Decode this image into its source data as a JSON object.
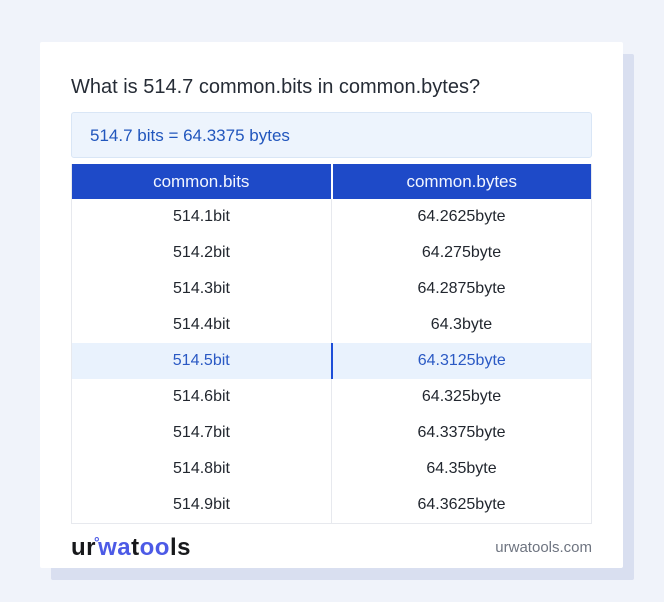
{
  "title": "What is 514.7 common.bits in common.bytes?",
  "result": {
    "text": "514.7 bits = 64.3375 bytes"
  },
  "table": {
    "headers": {
      "bits": "common.bits",
      "bytes": "common.bytes"
    },
    "rows": [
      {
        "bits": "514.1bit",
        "bytes": "64.2625byte",
        "highlight": false
      },
      {
        "bits": "514.2bit",
        "bytes": "64.275byte",
        "highlight": false
      },
      {
        "bits": "514.3bit",
        "bytes": "64.2875byte",
        "highlight": false
      },
      {
        "bits": "514.4bit",
        "bytes": "64.3byte",
        "highlight": false
      },
      {
        "bits": "514.5bit",
        "bytes": "64.3125byte",
        "highlight": true
      },
      {
        "bits": "514.6bit",
        "bytes": "64.325byte",
        "highlight": false
      },
      {
        "bits": "514.7bit",
        "bytes": "64.3375byte",
        "highlight": false
      },
      {
        "bits": "514.8bit",
        "bytes": "64.35byte",
        "highlight": false
      },
      {
        "bits": "514.9bit",
        "bytes": "64.3625byte",
        "highlight": false
      }
    ]
  },
  "footer": {
    "logo": {
      "seg1": "ur",
      "degree": "°",
      "seg2": "wa",
      "seg3": "t",
      "seg4": "oo",
      "seg5": "ls"
    },
    "website": "urwatools.com"
  },
  "colors": {
    "page_bg": "#f0f3fa",
    "header_blue": "#1e4ac8",
    "result_text_blue": "#2156bd",
    "result_bg": "#edf4fd",
    "highlight_row_bg": "#e9f2fd",
    "highlight_divider_blue": "#1d4ed8",
    "logo_blue": "#4c5ae6",
    "card_shadow": "#d9dff0"
  }
}
